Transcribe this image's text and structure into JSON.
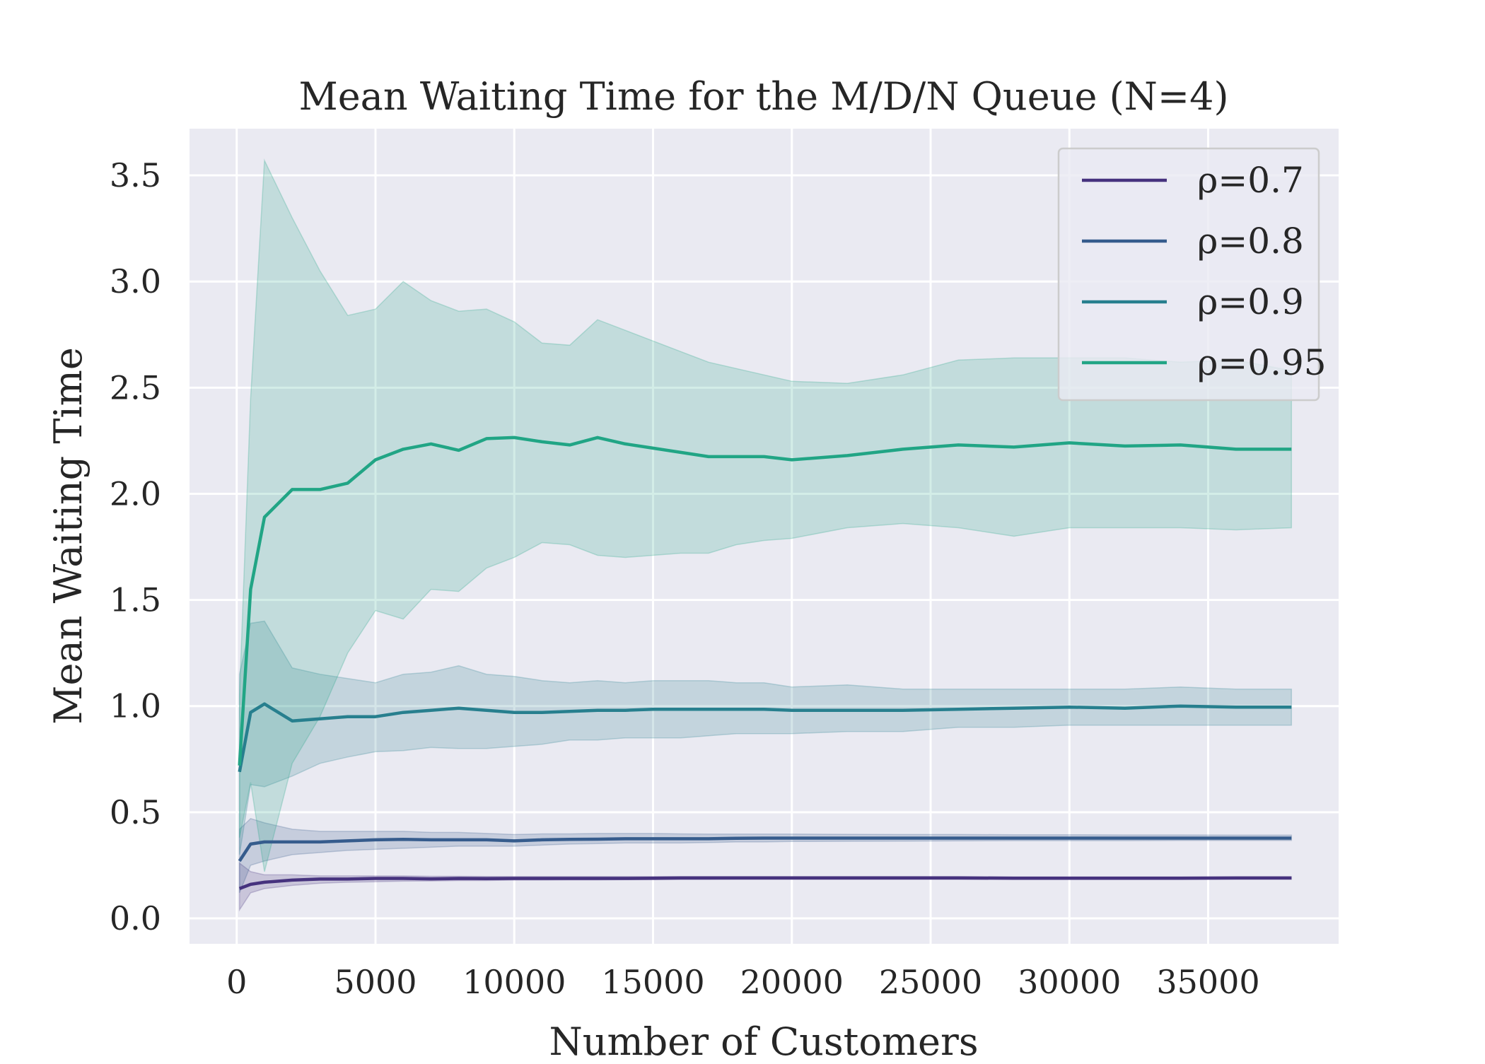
{
  "chart_data": {
    "type": "line",
    "title": "Mean Waiting Time for the M/D/N Queue (N=4)",
    "xlabel": "Number of Customers",
    "ylabel": "Mean Waiting Time",
    "xlim": [
      -1700,
      39700
    ],
    "ylim": [
      -0.12,
      3.72
    ],
    "xticks": [
      0,
      5000,
      10000,
      15000,
      20000,
      25000,
      30000,
      35000
    ],
    "yticks": [
      0.0,
      0.5,
      1.0,
      1.5,
      2.0,
      2.5,
      3.0,
      3.5
    ],
    "xtick_labels": [
      "0",
      "5000",
      "10000",
      "15000",
      "20000",
      "25000",
      "30000",
      "35000"
    ],
    "ytick_labels": [
      "0.0",
      "0.5",
      "1.0",
      "1.5",
      "2.0",
      "2.5",
      "3.0",
      "3.5"
    ],
    "grid": true,
    "legend_position": "top-right",
    "x": [
      100,
      500,
      1000,
      2000,
      3000,
      4000,
      5000,
      6000,
      7000,
      8000,
      9000,
      10000,
      11000,
      12000,
      13000,
      14000,
      15000,
      16000,
      17000,
      18000,
      19000,
      20000,
      22000,
      24000,
      26000,
      28000,
      30000,
      32000,
      34000,
      36000,
      38000
    ],
    "series": [
      {
        "name": "ρ=0.7",
        "color": "#46327e",
        "values": [
          0.14,
          0.16,
          0.17,
          0.18,
          0.185,
          0.185,
          0.188,
          0.188,
          0.186,
          0.188,
          0.187,
          0.188,
          0.188,
          0.188,
          0.188,
          0.188,
          0.189,
          0.19,
          0.19,
          0.19,
          0.19,
          0.19,
          0.19,
          0.19,
          0.19,
          0.189,
          0.189,
          0.189,
          0.189,
          0.19,
          0.19
        ],
        "lower": [
          0.04,
          0.12,
          0.14,
          0.155,
          0.165,
          0.17,
          0.172,
          0.175,
          0.176,
          0.178,
          0.178,
          0.18,
          0.18,
          0.181,
          0.181,
          0.182,
          0.182,
          0.183,
          0.183,
          0.184,
          0.184,
          0.184,
          0.184,
          0.184,
          0.184,
          0.184,
          0.184,
          0.184,
          0.184,
          0.184,
          0.184
        ],
        "upper": [
          0.26,
          0.22,
          0.205,
          0.205,
          0.2,
          0.2,
          0.2,
          0.2,
          0.198,
          0.198,
          0.197,
          0.197,
          0.197,
          0.197,
          0.197,
          0.197,
          0.197,
          0.197,
          0.197,
          0.197,
          0.197,
          0.197,
          0.197,
          0.197,
          0.197,
          0.196,
          0.196,
          0.196,
          0.196,
          0.196,
          0.196
        ]
      },
      {
        "name": "ρ=0.8",
        "color": "#365c8d",
        "values": [
          0.27,
          0.35,
          0.36,
          0.36,
          0.36,
          0.365,
          0.37,
          0.372,
          0.37,
          0.37,
          0.37,
          0.365,
          0.37,
          0.372,
          0.373,
          0.375,
          0.375,
          0.375,
          0.375,
          0.377,
          0.378,
          0.378,
          0.378,
          0.378,
          0.378,
          0.378,
          0.378,
          0.378,
          0.378,
          0.378,
          0.378
        ],
        "lower": [
          0.12,
          0.25,
          0.27,
          0.3,
          0.31,
          0.32,
          0.325,
          0.33,
          0.335,
          0.34,
          0.34,
          0.34,
          0.345,
          0.35,
          0.352,
          0.355,
          0.355,
          0.355,
          0.357,
          0.36,
          0.36,
          0.362,
          0.363,
          0.364,
          0.365,
          0.366,
          0.366,
          0.366,
          0.367,
          0.367,
          0.367
        ],
        "upper": [
          0.42,
          0.47,
          0.45,
          0.42,
          0.41,
          0.41,
          0.41,
          0.41,
          0.405,
          0.405,
          0.4,
          0.395,
          0.398,
          0.398,
          0.4,
          0.4,
          0.4,
          0.398,
          0.397,
          0.397,
          0.397,
          0.397,
          0.396,
          0.395,
          0.395,
          0.394,
          0.394,
          0.393,
          0.393,
          0.392,
          0.392
        ]
      },
      {
        "name": "ρ=0.9",
        "color": "#277f8e",
        "values": [
          0.69,
          0.97,
          1.01,
          0.93,
          0.94,
          0.95,
          0.95,
          0.97,
          0.98,
          0.99,
          0.98,
          0.97,
          0.97,
          0.975,
          0.98,
          0.98,
          0.985,
          0.985,
          0.985,
          0.985,
          0.985,
          0.98,
          0.98,
          0.98,
          0.985,
          0.99,
          0.995,
          0.99,
          1.0,
          0.995,
          0.995
        ],
        "lower": [
          0.3,
          0.63,
          0.62,
          0.67,
          0.73,
          0.76,
          0.785,
          0.79,
          0.805,
          0.8,
          0.8,
          0.81,
          0.82,
          0.84,
          0.84,
          0.85,
          0.85,
          0.85,
          0.86,
          0.87,
          0.87,
          0.87,
          0.88,
          0.88,
          0.9,
          0.9,
          0.91,
          0.91,
          0.91,
          0.91,
          0.91
        ],
        "upper": [
          1.15,
          1.39,
          1.4,
          1.18,
          1.15,
          1.13,
          1.11,
          1.15,
          1.16,
          1.19,
          1.15,
          1.14,
          1.12,
          1.11,
          1.12,
          1.11,
          1.12,
          1.12,
          1.12,
          1.11,
          1.11,
          1.09,
          1.1,
          1.08,
          1.08,
          1.08,
          1.08,
          1.08,
          1.09,
          1.08,
          1.08
        ]
      },
      {
        "name": "ρ=0.95",
        "color": "#21a585",
        "values": [
          0.72,
          1.55,
          1.89,
          2.02,
          2.02,
          2.05,
          2.16,
          2.21,
          2.235,
          2.205,
          2.26,
          2.265,
          2.245,
          2.23,
          2.265,
          2.235,
          2.215,
          2.195,
          2.175,
          2.175,
          2.175,
          2.16,
          2.18,
          2.21,
          2.23,
          2.22,
          2.24,
          2.225,
          2.23,
          2.21,
          2.21
        ],
        "lower": [
          0.38,
          0.64,
          0.22,
          0.73,
          0.95,
          1.25,
          1.45,
          1.41,
          1.55,
          1.54,
          1.65,
          1.7,
          1.77,
          1.76,
          1.71,
          1.7,
          1.71,
          1.72,
          1.72,
          1.76,
          1.78,
          1.79,
          1.84,
          1.86,
          1.84,
          1.8,
          1.84,
          1.84,
          1.84,
          1.83,
          1.84
        ],
        "upper": [
          1.05,
          2.45,
          3.57,
          3.3,
          3.05,
          2.84,
          2.87,
          3.0,
          2.91,
          2.86,
          2.87,
          2.81,
          2.71,
          2.7,
          2.82,
          2.77,
          2.72,
          2.67,
          2.62,
          2.59,
          2.56,
          2.53,
          2.52,
          2.56,
          2.63,
          2.64,
          2.64,
          2.64,
          2.62,
          2.63,
          2.58
        ]
      }
    ]
  }
}
